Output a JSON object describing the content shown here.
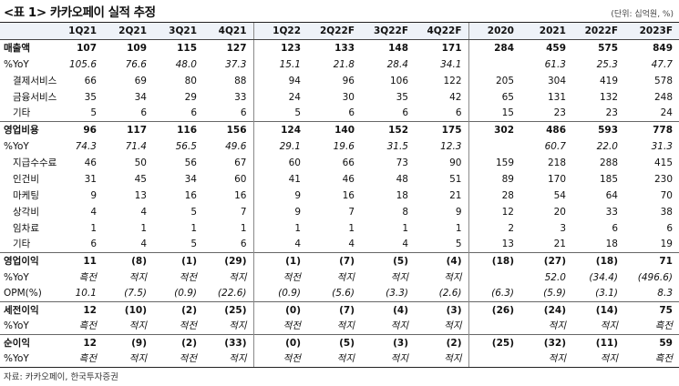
{
  "title": "<표 1> 카카오페이 실적 추정",
  "unit": "(단위: 십억원, %)",
  "source": "자료: 카카오페이, 한국투자증권",
  "header": [
    "",
    "1Q21",
    "2Q21",
    "3Q21",
    "4Q21",
    "1Q22",
    "2Q22F",
    "3Q22F",
    "4Q22F",
    "2020",
    "2021",
    "2022F",
    "2023F"
  ],
  "rows": [
    {
      "kind": "main",
      "cells": [
        "매출액",
        "107",
        "109",
        "115",
        "127",
        "123",
        "133",
        "148",
        "171",
        "284",
        "459",
        "575",
        "849"
      ]
    },
    {
      "kind": "pct",
      "cells": [
        "%YoY",
        "105.6",
        "76.6",
        "48.0",
        "37.3",
        "15.1",
        "21.8",
        "28.4",
        "34.1",
        "",
        "61.3",
        "25.3",
        "47.7"
      ]
    },
    {
      "kind": "sub",
      "cells": [
        "결제서비스",
        "66",
        "69",
        "80",
        "88",
        "94",
        "96",
        "106",
        "122",
        "205",
        "304",
        "419",
        "578"
      ]
    },
    {
      "kind": "sub",
      "cells": [
        "금융서비스",
        "35",
        "34",
        "29",
        "33",
        "24",
        "30",
        "35",
        "42",
        "65",
        "131",
        "132",
        "248"
      ]
    },
    {
      "kind": "sub",
      "cells": [
        "기타",
        "5",
        "6",
        "6",
        "6",
        "5",
        "6",
        "6",
        "6",
        "15",
        "23",
        "23",
        "24"
      ]
    },
    {
      "kind": "main sep",
      "cells": [
        "영업비용",
        "96",
        "117",
        "116",
        "156",
        "124",
        "140",
        "152",
        "175",
        "302",
        "486",
        "593",
        "778"
      ]
    },
    {
      "kind": "pct",
      "cells": [
        "%YoY",
        "74.3",
        "71.4",
        "56.5",
        "49.6",
        "29.1",
        "19.6",
        "31.5",
        "12.3",
        "",
        "60.7",
        "22.0",
        "31.3"
      ]
    },
    {
      "kind": "sub",
      "cells": [
        "지급수수료",
        "46",
        "50",
        "56",
        "67",
        "60",
        "66",
        "73",
        "90",
        "159",
        "218",
        "288",
        "415"
      ]
    },
    {
      "kind": "sub",
      "cells": [
        "인건비",
        "31",
        "45",
        "34",
        "60",
        "41",
        "46",
        "48",
        "51",
        "89",
        "170",
        "185",
        "230"
      ]
    },
    {
      "kind": "sub",
      "cells": [
        "마케팅",
        "9",
        "13",
        "16",
        "16",
        "9",
        "16",
        "18",
        "21",
        "28",
        "54",
        "64",
        "70"
      ]
    },
    {
      "kind": "sub",
      "cells": [
        "상각비",
        "4",
        "4",
        "5",
        "7",
        "9",
        "7",
        "8",
        "9",
        "12",
        "20",
        "33",
        "38"
      ]
    },
    {
      "kind": "sub",
      "cells": [
        "임차료",
        "1",
        "1",
        "1",
        "1",
        "1",
        "1",
        "1",
        "1",
        "2",
        "3",
        "6",
        "6"
      ]
    },
    {
      "kind": "sub",
      "cells": [
        "기타",
        "6",
        "4",
        "5",
        "6",
        "4",
        "4",
        "4",
        "5",
        "13",
        "21",
        "18",
        "19"
      ]
    },
    {
      "kind": "main sep",
      "cells": [
        "영업이익",
        "11",
        "(8)",
        "(1)",
        "(29)",
        "(1)",
        "(7)",
        "(5)",
        "(4)",
        "(18)",
        "(27)",
        "(18)",
        "71"
      ]
    },
    {
      "kind": "pct",
      "cells": [
        "%YoY",
        "흑전",
        "적지",
        "적전",
        "적지",
        "적전",
        "적지",
        "적지",
        "적지",
        "",
        "52.0",
        "(34.4)",
        "(496.6)"
      ]
    },
    {
      "kind": "pct",
      "cells": [
        "OPM(%)",
        "10.1",
        "(7.5)",
        "(0.9)",
        "(22.6)",
        "(0.9)",
        "(5.6)",
        "(3.3)",
        "(2.6)",
        "(6.3)",
        "(5.9)",
        "(3.1)",
        "8.3"
      ]
    },
    {
      "kind": "main sep",
      "cells": [
        "세전이익",
        "12",
        "(10)",
        "(2)",
        "(25)",
        "(0)",
        "(7)",
        "(4)",
        "(3)",
        "(26)",
        "(24)",
        "(14)",
        "75"
      ]
    },
    {
      "kind": "pct",
      "cells": [
        "%YoY",
        "흑전",
        "적지",
        "적전",
        "적지",
        "적전",
        "적지",
        "적지",
        "적지",
        "",
        "적지",
        "적지",
        "흑전"
      ]
    },
    {
      "kind": "main sep",
      "cells": [
        "순이익",
        "12",
        "(9)",
        "(2)",
        "(33)",
        "(0)",
        "(5)",
        "(3)",
        "(2)",
        "(25)",
        "(32)",
        "(11)",
        "59"
      ]
    },
    {
      "kind": "pct last",
      "cells": [
        "%YoY",
        "흑전",
        "적지",
        "적전",
        "적지",
        "적전",
        "적지",
        "적지",
        "적지",
        "",
        "적지",
        "적지",
        "흑전"
      ]
    }
  ]
}
